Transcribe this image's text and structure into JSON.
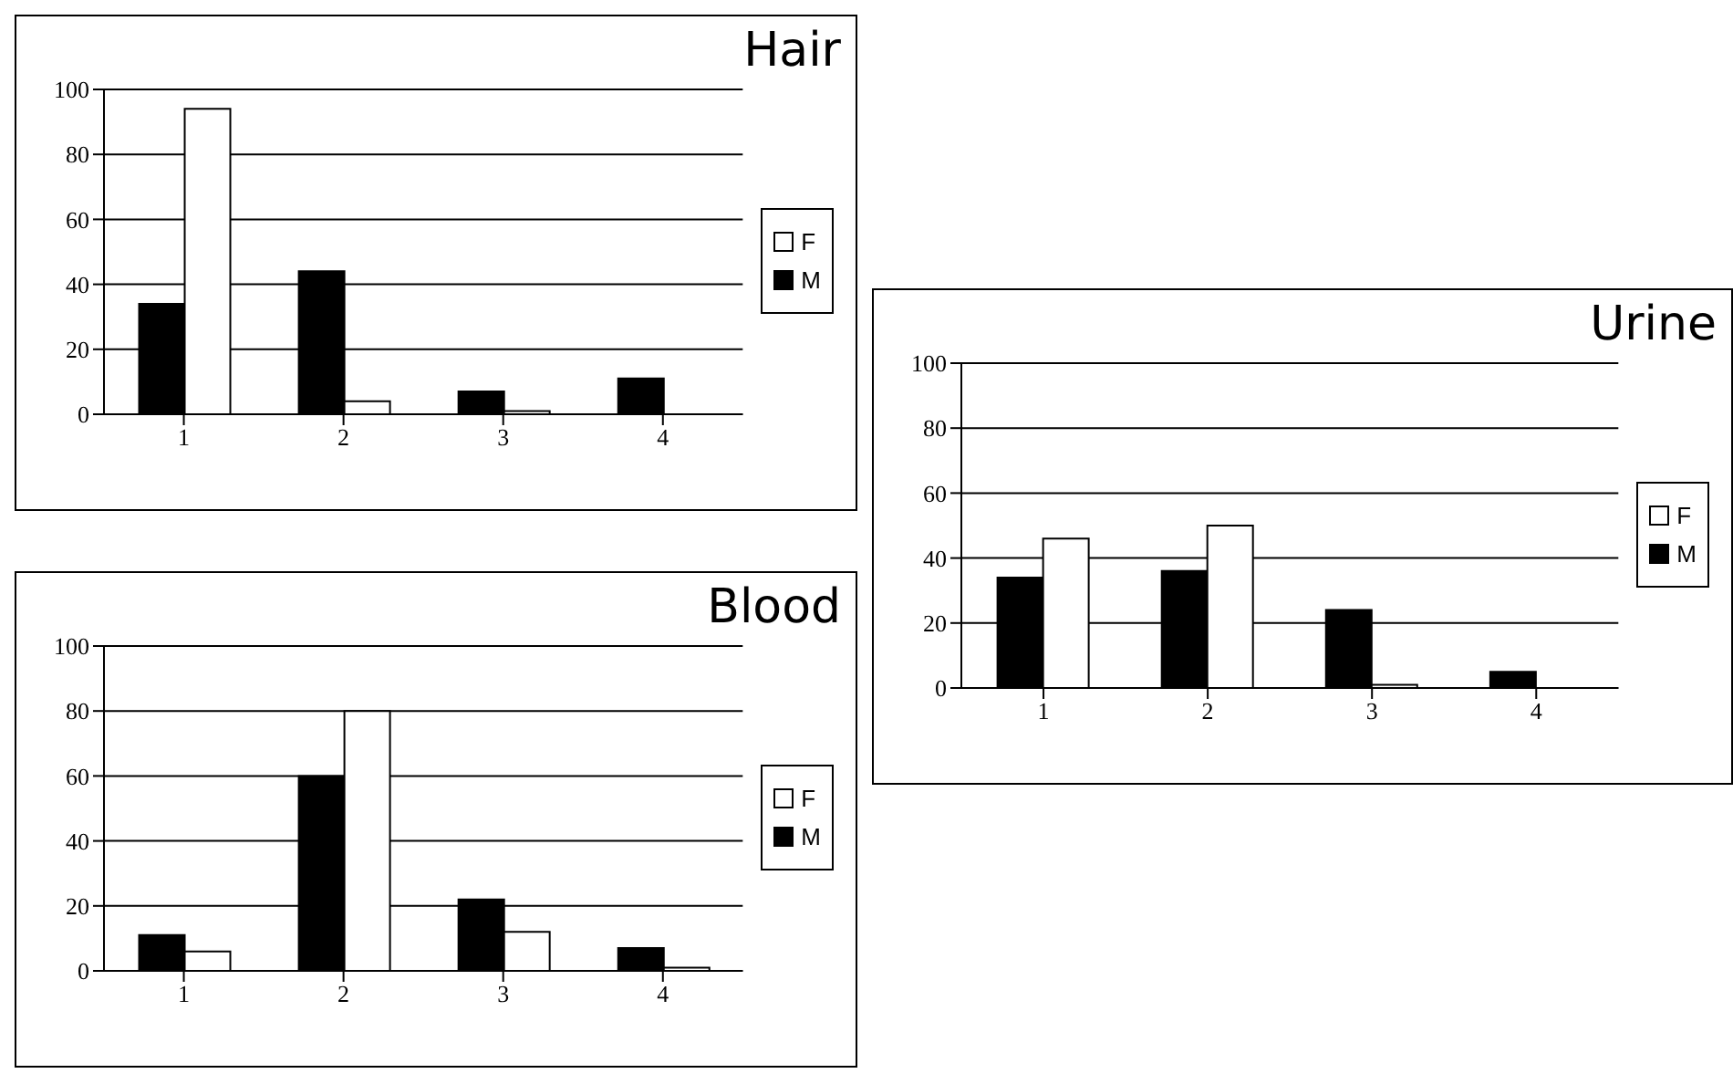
{
  "chart_data": [
    {
      "type": "bar",
      "title": "Hair",
      "categories": [
        "1",
        "2",
        "3",
        "4"
      ],
      "series": [
        {
          "name": "M",
          "color": "#000000",
          "values": [
            34,
            44,
            7,
            11
          ]
        },
        {
          "name": "F",
          "color": "#ffffff",
          "values": [
            94,
            4,
            1,
            0
          ]
        }
      ],
      "ylim": [
        0,
        100
      ],
      "yticks": [
        0,
        20,
        40,
        60,
        80,
        100
      ],
      "grid": "y",
      "legend": "right"
    },
    {
      "type": "bar",
      "title": "Urine",
      "categories": [
        "1",
        "2",
        "3",
        "4"
      ],
      "series": [
        {
          "name": "M",
          "color": "#000000",
          "values": [
            34,
            36,
            24,
            5
          ]
        },
        {
          "name": "F",
          "color": "#ffffff",
          "values": [
            46,
            50,
            1,
            0
          ]
        }
      ],
      "ylim": [
        0,
        100
      ],
      "yticks": [
        0,
        20,
        40,
        60,
        80,
        100
      ],
      "grid": "y",
      "legend": "right"
    },
    {
      "type": "bar",
      "title": "Blood",
      "categories": [
        "1",
        "2",
        "3",
        "4"
      ],
      "series": [
        {
          "name": "M",
          "color": "#000000",
          "values": [
            11,
            60,
            22,
            7
          ]
        },
        {
          "name": "F",
          "color": "#ffffff",
          "values": [
            6,
            80,
            12,
            1
          ]
        }
      ],
      "ylim": [
        0,
        100
      ],
      "yticks": [
        0,
        20,
        40,
        60,
        80,
        100
      ],
      "grid": "y",
      "legend": "right"
    }
  ]
}
